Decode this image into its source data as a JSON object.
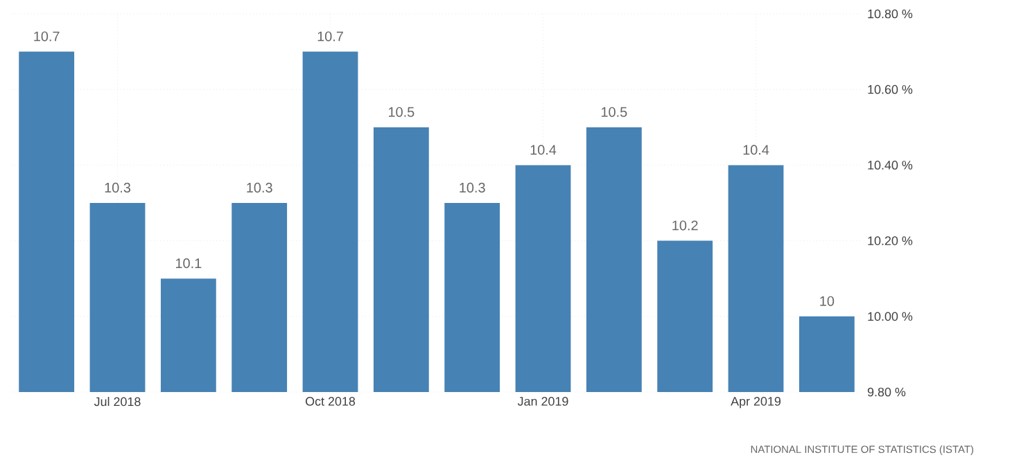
{
  "chart_data": {
    "type": "bar",
    "categories": [
      null,
      "Jul 2018",
      null,
      null,
      "Oct 2018",
      null,
      null,
      "Jan 2019",
      null,
      null,
      "Apr 2019",
      null
    ],
    "values": [
      10.7,
      10.3,
      10.1,
      10.3,
      10.7,
      10.5,
      10.3,
      10.4,
      10.5,
      10.2,
      10.4,
      10
    ],
    "color": "#4682b4",
    "ylim": [
      9.8,
      10.8
    ],
    "yticks": [
      {
        "value": 9.8,
        "label": "9.80 %"
      },
      {
        "value": 10.0,
        "label": "10.00 %"
      },
      {
        "value": 10.2,
        "label": "10.20 %"
      },
      {
        "value": 10.4,
        "label": "10.40 %"
      },
      {
        "value": 10.6,
        "label": "10.60 %"
      },
      {
        "value": 10.8,
        "label": "10.80 %"
      }
    ],
    "grid": true,
    "data_labels": true,
    "annotations": [
      "NATIONAL INSTITUTE OF STATISTICS (ISTAT)"
    ]
  }
}
